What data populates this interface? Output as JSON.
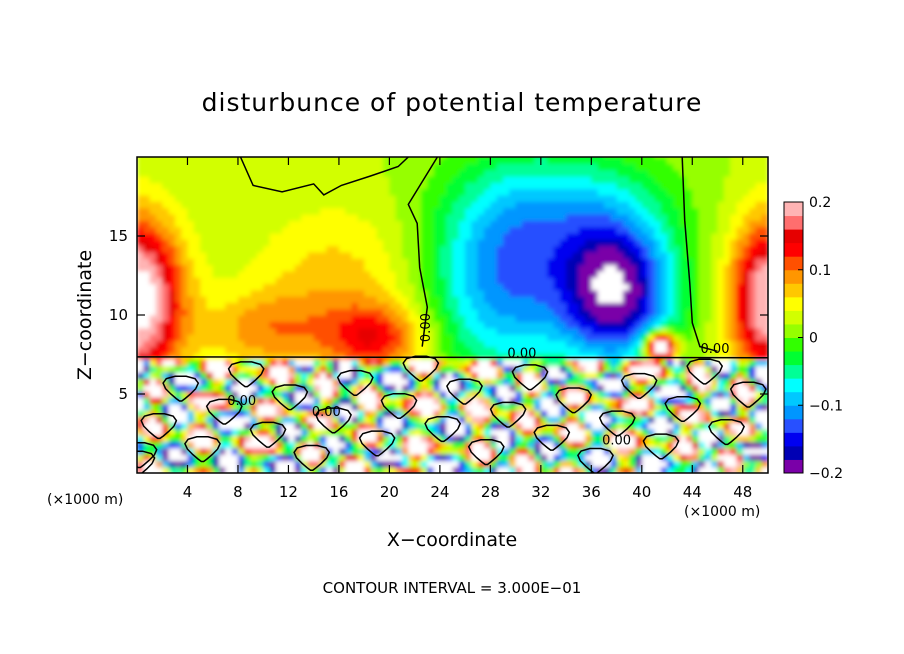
{
  "chart_data": {
    "type": "heatmap",
    "title": "disturbunce of potential temperature",
    "xlabel": "X−coordinate",
    "ylabel": "Z−coordinate",
    "x_unit_label": "(×1000 m)",
    "x_unit_label_right": "(×1000 m)",
    "footer": "CONTOUR INTERVAL = 3.000E−01",
    "xlim": [
      0,
      50
    ],
    "ylim": [
      0,
      20
    ],
    "x_ticks": [
      "4",
      "8",
      "12",
      "16",
      "20",
      "24",
      "28",
      "32",
      "36",
      "40",
      "44",
      "48"
    ],
    "x_tick_values": [
      4,
      8,
      12,
      16,
      20,
      24,
      28,
      32,
      36,
      40,
      44,
      48
    ],
    "y_ticks": [
      "5",
      "10",
      "15"
    ],
    "y_tick_values": [
      5,
      10,
      15
    ],
    "colorbar": {
      "range": [
        -0.2,
        0.2
      ],
      "tick_labels": [
        "0.2",
        "0.1",
        "0",
        "−0.1",
        "−0.2"
      ],
      "tick_values": [
        0.2,
        0.1,
        0,
        -0.1,
        -0.2
      ],
      "colors": [
        "#7a00a8",
        "#0000b4",
        "#0000f0",
        "#2850ff",
        "#0096ff",
        "#00c8ff",
        "#00ffff",
        "#00ff96",
        "#00ff32",
        "#32ff00",
        "#96ff00",
        "#d2ff00",
        "#ffff00",
        "#ffc800",
        "#ff9600",
        "#ff5000",
        "#ff0000",
        "#e60000",
        "#ff6e6e",
        "#ffb4b4"
      ]
    },
    "contour_labels": [
      {
        "text": "0.00",
        "x": 23.2,
        "z": 9.2
      },
      {
        "text": "0.00",
        "x": 45.8,
        "z": 7.6
      },
      {
        "text": "0.00",
        "x": 30.5,
        "z": 7.3
      },
      {
        "text": "0.00",
        "x": 8.3,
        "z": 4.3
      },
      {
        "text": "0.00",
        "x": 15.0,
        "z": 3.6
      },
      {
        "text": "0.00",
        "x": 38.0,
        "z": 1.8
      }
    ],
    "field_description": "stable layer above z≈7.3; strong small-scale disturbances below",
    "grid": false
  }
}
